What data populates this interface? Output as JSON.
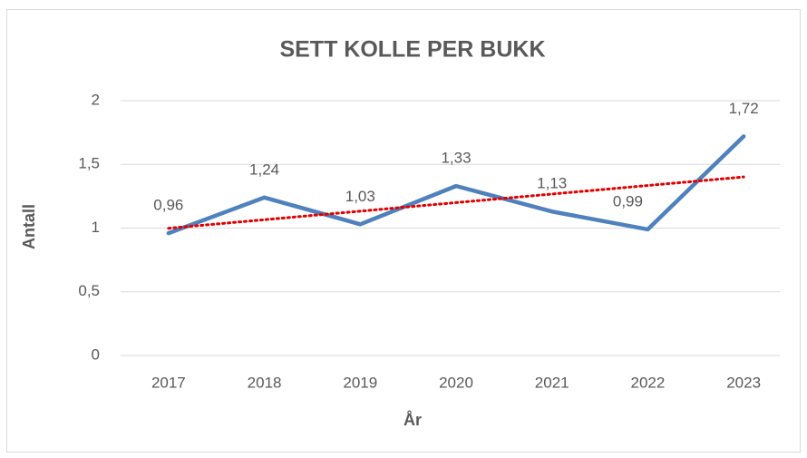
{
  "chart_data": {
    "type": "line",
    "title": "SETT KOLLE PER BUKK",
    "x_label": "År",
    "y_label": "Antall",
    "categories": [
      "2017",
      "2018",
      "2019",
      "2020",
      "2021",
      "2022",
      "2023"
    ],
    "values": [
      0.96,
      1.24,
      1.03,
      1.33,
      1.13,
      0.99,
      1.72
    ],
    "value_labels": [
      "0,96",
      "1,24",
      "1,03",
      "1,33",
      "1,13",
      "0,99",
      "1,72"
    ],
    "color": "#4f81bd",
    "trendline": "linear",
    "trendline_color": "#e00000",
    "ylim": [
      0,
      2
    ],
    "yticks": [
      0,
      {
        "value": 0.5,
        "label": "0,5"
      },
      1,
      {
        "value": 1.5,
        "label": "1,5"
      },
      2
    ],
    "grid": true
  }
}
